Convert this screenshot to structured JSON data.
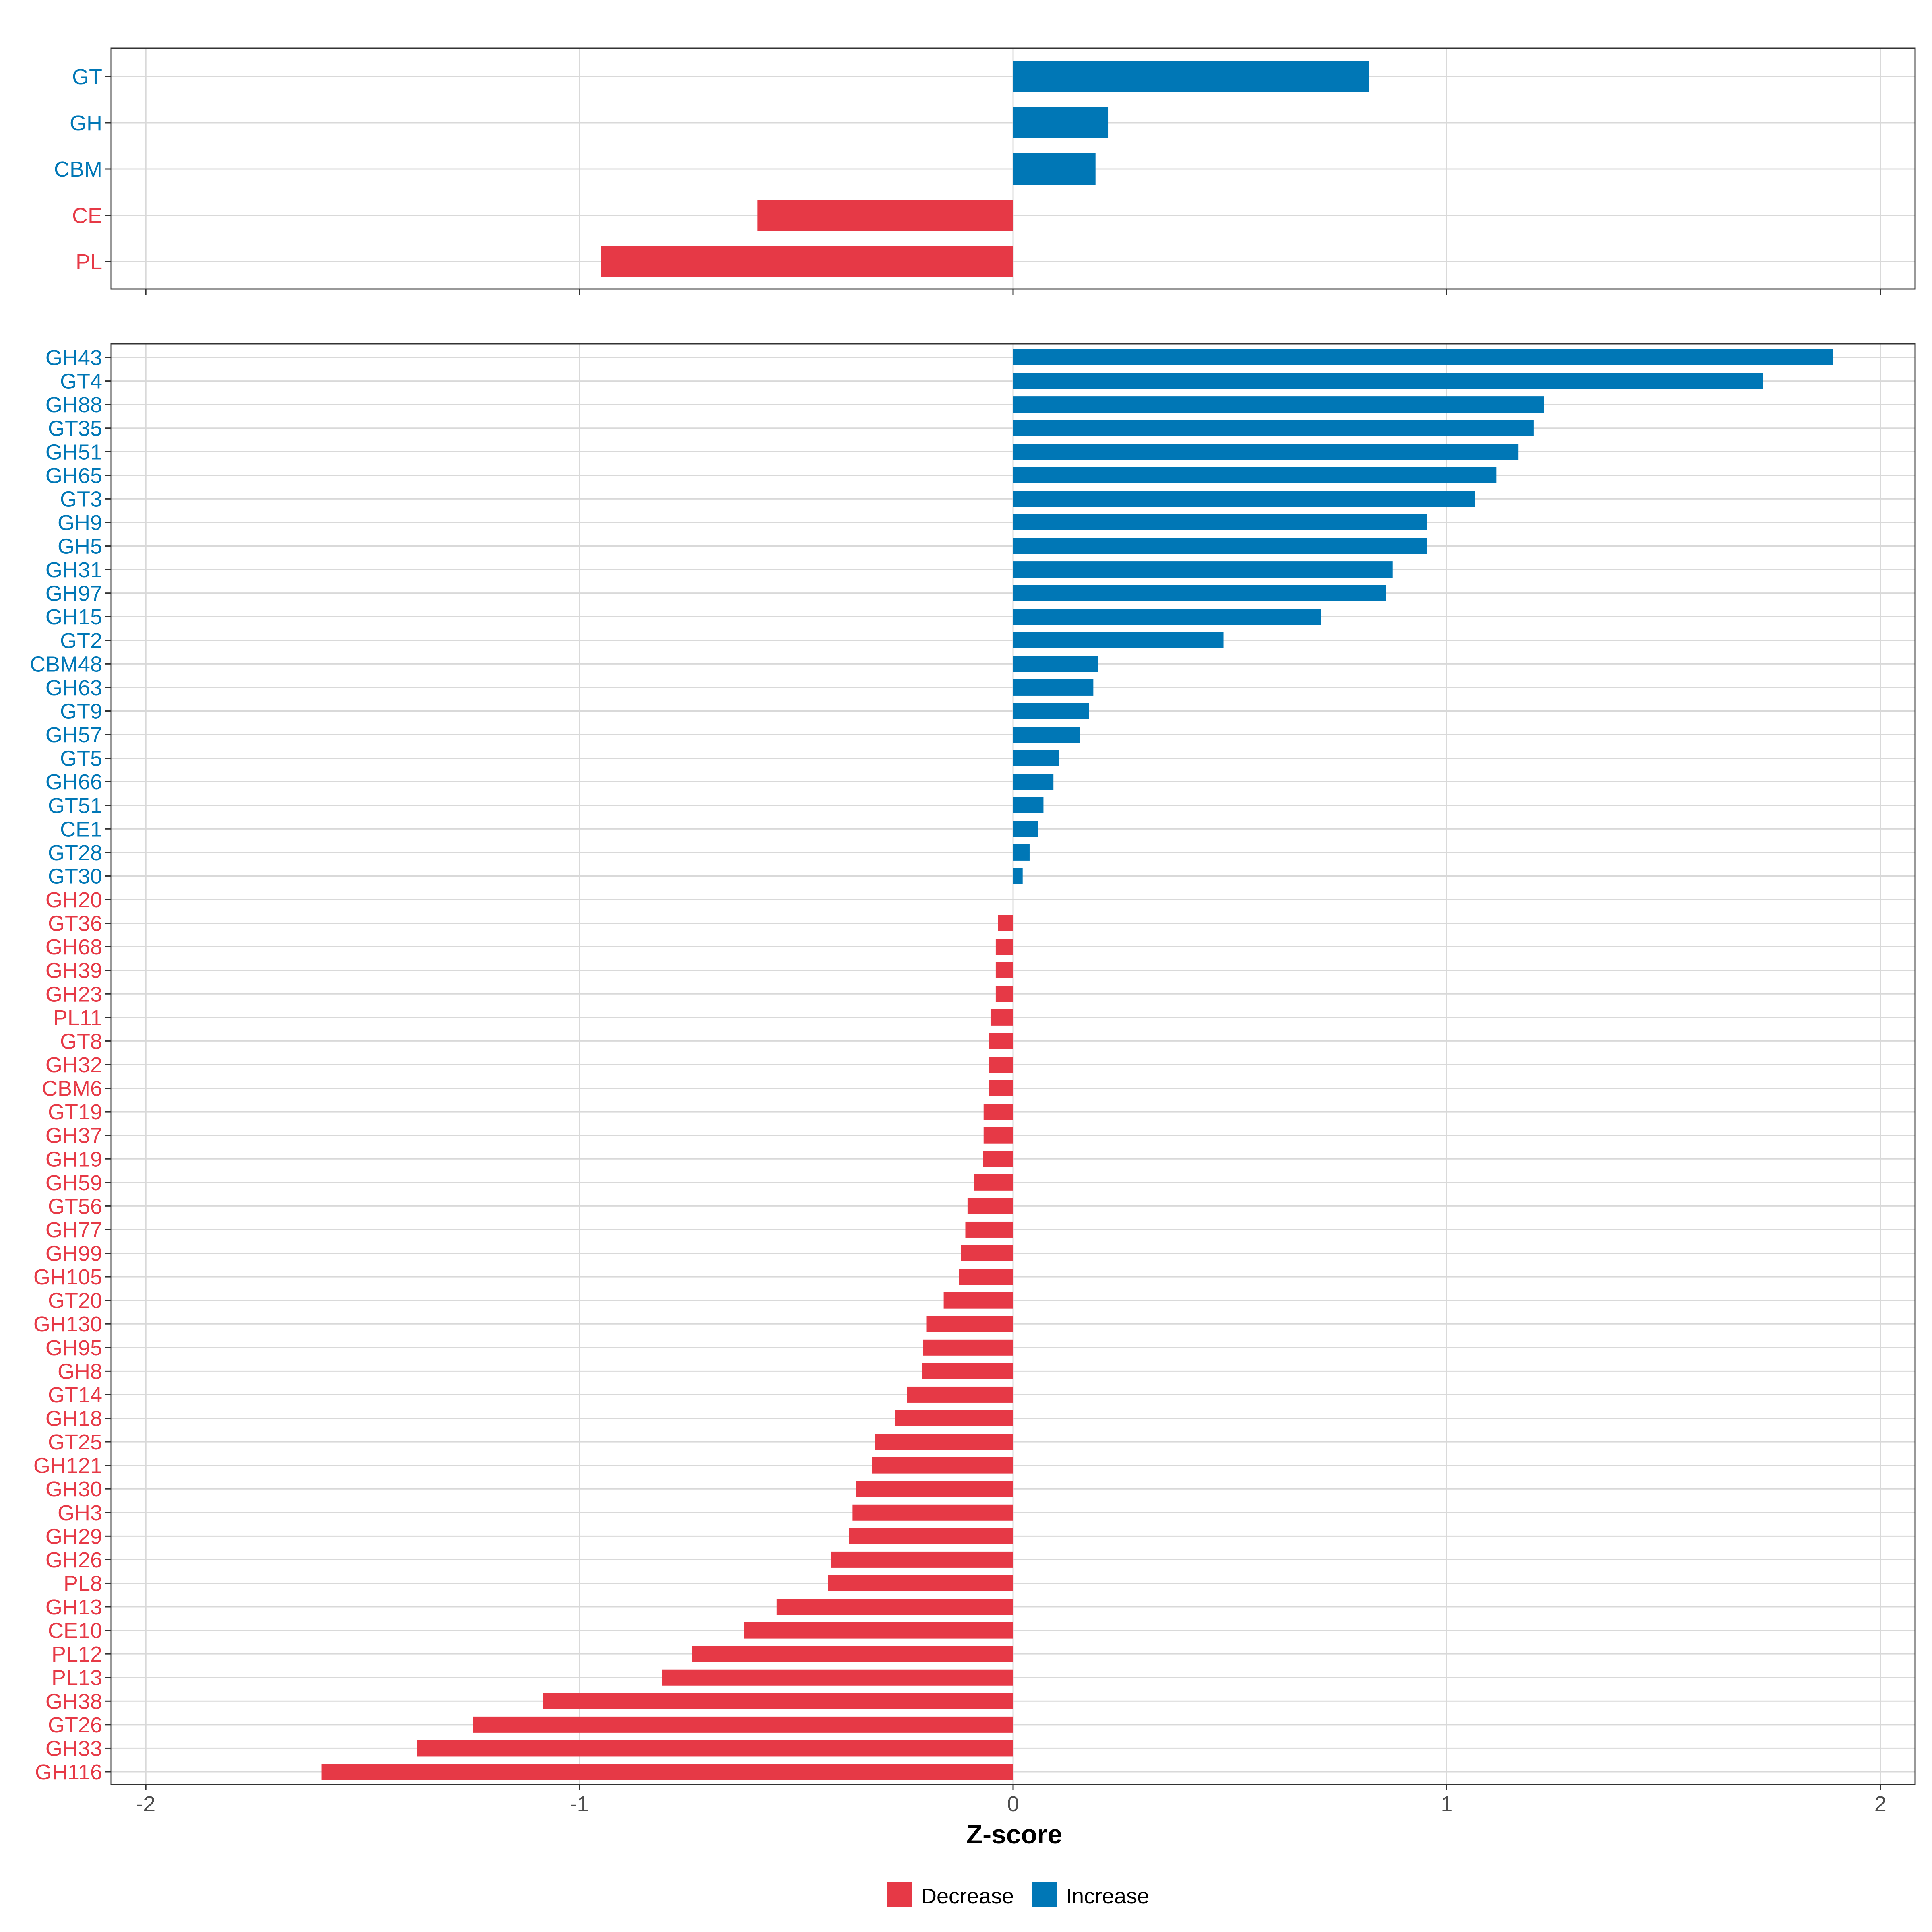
{
  "colors": {
    "decrease": "#E63946",
    "increase": "#0077B6",
    "grid": "#d9d9d9",
    "panel_border": "#333333"
  },
  "chart_data": [
    {
      "type": "bar",
      "orientation": "horizontal",
      "panel": "top",
      "title": "",
      "categories": [
        "GT",
        "GH",
        "CBM",
        "CE",
        "PL"
      ],
      "values": [
        0.82,
        0.22,
        0.19,
        -0.59,
        -0.95
      ],
      "xlim": [
        -2.08,
        2.08
      ],
      "grid": true
    },
    {
      "type": "bar",
      "orientation": "horizontal",
      "panel": "bottom",
      "title": "",
      "categories": [
        "GH43",
        "GT4",
        "GH88",
        "GT35",
        "GH51",
        "GH65",
        "GT3",
        "GH9",
        "GH5",
        "GH31",
        "GH97",
        "GH15",
        "GT2",
        "CBM48",
        "GH63",
        "GT9",
        "GH57",
        "GT5",
        "GH66",
        "GT51",
        "CE1",
        "GT28",
        "GT30",
        "GH20",
        "GT36",
        "GH68",
        "GH39",
        "GH23",
        "PL11",
        "GT8",
        "GH32",
        "CBM6",
        "GT19",
        "GH37",
        "GH19",
        "GH59",
        "GT56",
        "GH77",
        "GH99",
        "GH105",
        "GT20",
        "GH130",
        "GH95",
        "GH8",
        "GT14",
        "GH18",
        "GT25",
        "GH121",
        "GH30",
        "GH3",
        "GH29",
        "GH26",
        "PL8",
        "GH13",
        "CE10",
        "PL12",
        "PL13",
        "GH38",
        "GT26",
        "GH33",
        "GH116"
      ],
      "values": [
        1.89,
        1.73,
        1.225,
        1.2,
        1.165,
        1.115,
        1.065,
        0.955,
        0.955,
        0.875,
        0.86,
        0.71,
        0.485,
        0.195,
        0.185,
        0.175,
        0.155,
        0.105,
        0.093,
        0.07,
        0.058,
        0.038,
        0.022,
        0.0,
        -0.035,
        -0.04,
        -0.04,
        -0.04,
        -0.052,
        -0.055,
        -0.055,
        -0.055,
        -0.068,
        -0.068,
        -0.07,
        -0.09,
        -0.105,
        -0.11,
        -0.12,
        -0.125,
        -0.16,
        -0.2,
        -0.207,
        -0.21,
        -0.245,
        -0.272,
        -0.318,
        -0.325,
        -0.362,
        -0.37,
        -0.378,
        -0.42,
        -0.427,
        -0.545,
        -0.62,
        -0.74,
        -0.81,
        -1.085,
        -1.245,
        -1.375,
        -1.595
      ],
      "xlim": [
        -2.08,
        2.08
      ],
      "xticks": [
        -2,
        -1,
        0,
        1,
        2
      ],
      "xtick_labels": [
        "-2",
        "-1",
        "0",
        "1",
        "2"
      ],
      "xlabel": "Z-score",
      "grid": true
    }
  ],
  "legend": {
    "position": "bottom",
    "items": [
      {
        "label": "Decrease",
        "color": "#E63946"
      },
      {
        "label": "Increase",
        "color": "#0077B6"
      }
    ]
  }
}
